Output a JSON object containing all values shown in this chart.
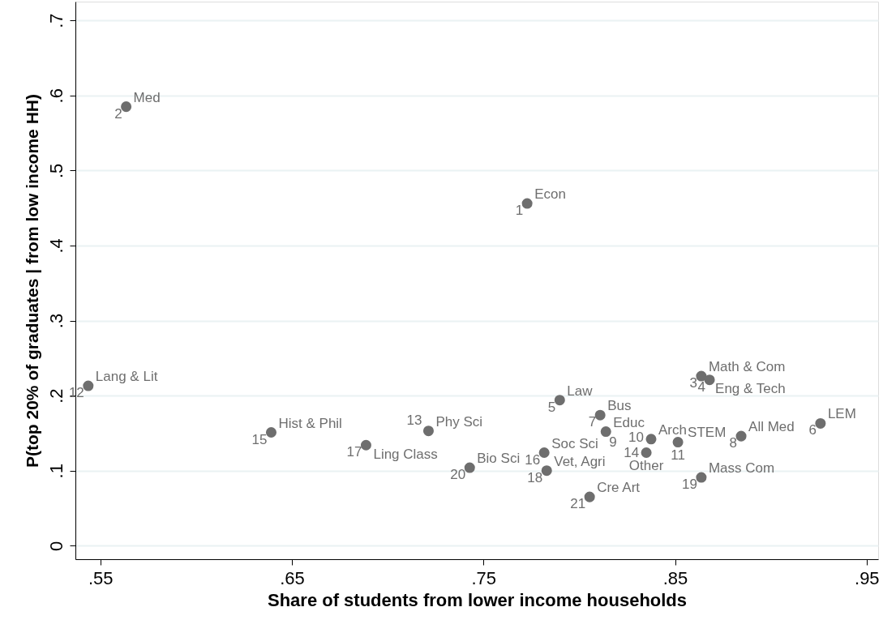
{
  "chart_data": {
    "type": "scatter",
    "xlabel": "Share of students from lower income households",
    "ylabel": "P(top 20% of graduates | from low income HH)",
    "x": [
      0.7728,
      0.5635,
      0.8637,
      0.868,
      0.7898,
      0.9259,
      0.8109,
      0.8845,
      0.8139,
      0.8375,
      0.8515,
      0.5437,
      0.7213,
      0.835,
      0.6392,
      0.7817,
      0.6887,
      0.783,
      0.8637,
      0.7428,
      0.8054
    ],
    "series": [
      {
        "color": "#6e6e6e",
        "values": [
          0.456,
          0.585,
          0.226,
          0.221,
          0.194,
          0.163,
          0.174,
          0.146,
          0.152,
          0.142,
          0.138,
          0.213,
          0.153,
          0.124,
          0.151,
          0.124,
          0.134,
          0.1,
          0.091,
          0.104,
          0.065
        ],
        "value_labels": [
          "Econ",
          "Med",
          "Math & Com",
          "Eng & Tech",
          "Law",
          "LEM",
          "Bus",
          "All Med",
          "Educ",
          "Arch",
          "STEM",
          "Lang & Lit",
          "Phy Sci",
          "Other",
          "Hist & Phil",
          "Soc Sci",
          "Ling Class",
          "Vet, Agri",
          "Mass Com",
          "Bio Sci",
          "Cre Art"
        ]
      }
    ],
    "annotations": [
      {
        "text": "1",
        "x": 0.7728,
        "y": 0.456
      },
      {
        "text": "2",
        "x": 0.5635,
        "y": 0.585
      },
      {
        "text": "3",
        "x": 0.8637,
        "y": 0.226
      },
      {
        "text": "4",
        "x": 0.868,
        "y": 0.221
      },
      {
        "text": "5",
        "x": 0.7898,
        "y": 0.194
      },
      {
        "text": "6",
        "x": 0.9259,
        "y": 0.163
      },
      {
        "text": "7",
        "x": 0.8109,
        "y": 0.174
      },
      {
        "text": "8",
        "x": 0.8845,
        "y": 0.146
      },
      {
        "text": "9",
        "x": 0.8139,
        "y": 0.152
      },
      {
        "text": "10",
        "x": 0.8375,
        "y": 0.142
      },
      {
        "text": "11",
        "x": 0.8515,
        "y": 0.138
      },
      {
        "text": "12",
        "x": 0.5437,
        "y": 0.213
      },
      {
        "text": "13",
        "x": 0.7213,
        "y": 0.153
      },
      {
        "text": "14",
        "x": 0.835,
        "y": 0.124
      },
      {
        "text": "15",
        "x": 0.6392,
        "y": 0.151
      },
      {
        "text": "16",
        "x": 0.7817,
        "y": 0.124
      },
      {
        "text": "17",
        "x": 0.6887,
        "y": 0.134
      },
      {
        "text": "18",
        "x": 0.783,
        "y": 0.1
      },
      {
        "text": "19",
        "x": 0.8637,
        "y": 0.091
      },
      {
        "text": "20",
        "x": 0.7428,
        "y": 0.104
      },
      {
        "text": "21",
        "x": 0.8054,
        "y": 0.065
      }
    ],
    "xlim": [
      0.537,
      0.956
    ],
    "ylim": [
      -0.018,
      0.725
    ],
    "xticks": [
      {
        "value": 0.55,
        "label": ".55"
      },
      {
        "value": 0.65,
        "label": ".65"
      },
      {
        "value": 0.75,
        "label": ".75"
      },
      {
        "value": 0.85,
        "label": ".85"
      },
      {
        "value": 0.95,
        "label": ".95"
      }
    ],
    "yticks": [
      0,
      {
        "value": 0.1,
        "label": ".1"
      },
      {
        "value": 0.2,
        "label": ".2"
      },
      {
        "value": 0.3,
        "label": ".3"
      },
      {
        "value": 0.4,
        "label": ".4"
      },
      {
        "value": 0.5,
        "label": ".5"
      },
      {
        "value": 0.6,
        "label": ".6"
      },
      {
        "value": 0.7,
        "label": ".7"
      }
    ],
    "grid": "y",
    "marker": "circle"
  }
}
